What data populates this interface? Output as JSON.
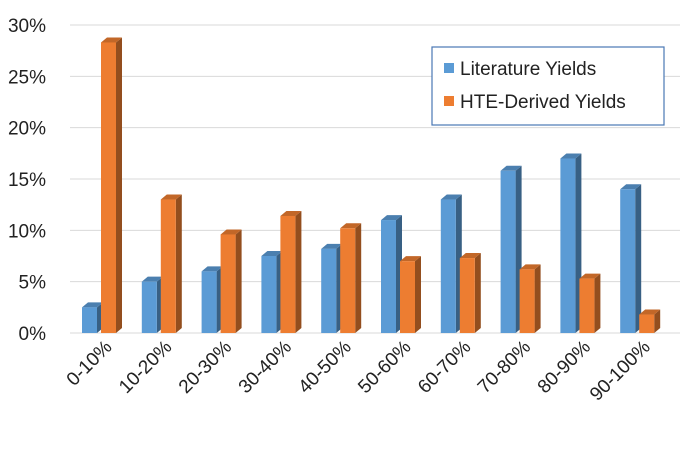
{
  "chart_data": {
    "type": "bar",
    "categories": [
      "0-10%",
      "10-20%",
      "20-30%",
      "30-40%",
      "40-50%",
      "50-60%",
      "60-70%",
      "70-80%",
      "80-90%",
      "90-100%"
    ],
    "series": [
      {
        "name": "Literature Yields",
        "values": [
          2.5,
          5.0,
          6.0,
          7.5,
          8.2,
          11.0,
          13.0,
          15.8,
          17.0,
          14.0
        ],
        "color": "#5b9bd5"
      },
      {
        "name": "HTE-Derived Yields",
        "values": [
          28.3,
          13.0,
          9.6,
          11.4,
          10.2,
          7.0,
          7.3,
          6.2,
          5.3,
          1.8
        ],
        "color": "#ed7d31"
      }
    ],
    "y_ticks": [
      "0%",
      "5%",
      "10%",
      "15%",
      "20%",
      "25%",
      "30%"
    ],
    "ylim": [
      0,
      30
    ],
    "y_unit": "%",
    "title": "",
    "xlabel": "",
    "ylabel": "",
    "grid": true,
    "legend_position": "top-right",
    "style": "3d-column"
  }
}
